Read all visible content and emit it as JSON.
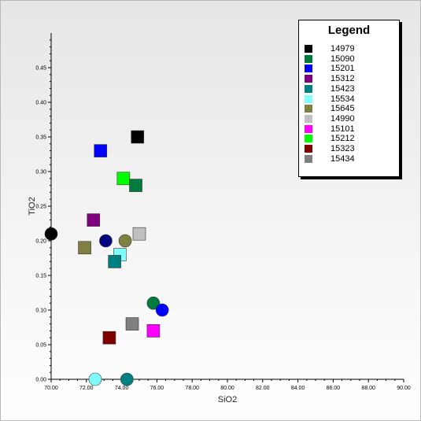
{
  "chart_data": {
    "type": "scatter",
    "title": "",
    "xlabel": "SiO2",
    "ylabel": "TiO2",
    "xlim": [
      70,
      90
    ],
    "ylim": [
      0,
      0.5
    ],
    "xticks": [
      "70.00",
      "72.00",
      "74.00",
      "76.00",
      "78.00",
      "80.00",
      "82.00",
      "84.00",
      "86.00",
      "88.00",
      "90.00"
    ],
    "yticks": [
      "0.00",
      "0.05",
      "0.10",
      "0.15",
      "0.20",
      "0.25",
      "0.30",
      "0.35",
      "0.40",
      "0.45"
    ],
    "legend": {
      "title": "Legend",
      "placement": "top-right",
      "entries": [
        {
          "label": "14979",
          "color": "#000000"
        },
        {
          "label": "15090",
          "color": "#007a3d"
        },
        {
          "label": "15201",
          "color": "#0000ff"
        },
        {
          "label": "15312",
          "color": "#800080"
        },
        {
          "label": "15423",
          "color": "#008080"
        },
        {
          "label": "15534",
          "color": "#80ffff"
        },
        {
          "label": "15645",
          "color": "#808040"
        },
        {
          "label": "14990",
          "color": "#c0c0c0"
        },
        {
          "label": "15101",
          "color": "#ff00ff"
        },
        {
          "label": "15212",
          "color": "#00ff00"
        },
        {
          "label": "15323",
          "color": "#800000"
        },
        {
          "label": "15434",
          "color": "#808080"
        }
      ]
    },
    "points": [
      {
        "x": 74.9,
        "y": 0.35,
        "shape": "square",
        "color": "#000000"
      },
      {
        "x": 72.8,
        "y": 0.33,
        "shape": "square",
        "color": "#0000ff"
      },
      {
        "x": 74.1,
        "y": 0.29,
        "shape": "square",
        "color": "#00ff00"
      },
      {
        "x": 74.8,
        "y": 0.28,
        "shape": "square",
        "color": "#007a3d"
      },
      {
        "x": 72.4,
        "y": 0.23,
        "shape": "square",
        "color": "#800080"
      },
      {
        "x": 70.0,
        "y": 0.21,
        "shape": "circle",
        "color": "#000000"
      },
      {
        "x": 75.0,
        "y": 0.21,
        "shape": "square",
        "color": "#c0c0c0"
      },
      {
        "x": 73.1,
        "y": 0.2,
        "shape": "circle",
        "color": "#000080"
      },
      {
        "x": 74.2,
        "y": 0.2,
        "shape": "circle",
        "color": "#808040"
      },
      {
        "x": 71.9,
        "y": 0.19,
        "shape": "square",
        "color": "#808040"
      },
      {
        "x": 73.9,
        "y": 0.18,
        "shape": "square",
        "color": "#80ffff"
      },
      {
        "x": 73.6,
        "y": 0.17,
        "shape": "square",
        "color": "#008080"
      },
      {
        "x": 75.8,
        "y": 0.11,
        "shape": "circle",
        "color": "#007a3d"
      },
      {
        "x": 76.3,
        "y": 0.1,
        "shape": "circle",
        "color": "#0000ff"
      },
      {
        "x": 74.6,
        "y": 0.08,
        "shape": "square",
        "color": "#808080"
      },
      {
        "x": 75.8,
        "y": 0.07,
        "shape": "square",
        "color": "#ff00ff"
      },
      {
        "x": 73.3,
        "y": 0.06,
        "shape": "square",
        "color": "#800000"
      },
      {
        "x": 72.5,
        "y": 0.0,
        "shape": "circle",
        "color": "#80ffff"
      },
      {
        "x": 74.3,
        "y": 0.0,
        "shape": "circle",
        "color": "#008080"
      }
    ],
    "grid": false
  }
}
